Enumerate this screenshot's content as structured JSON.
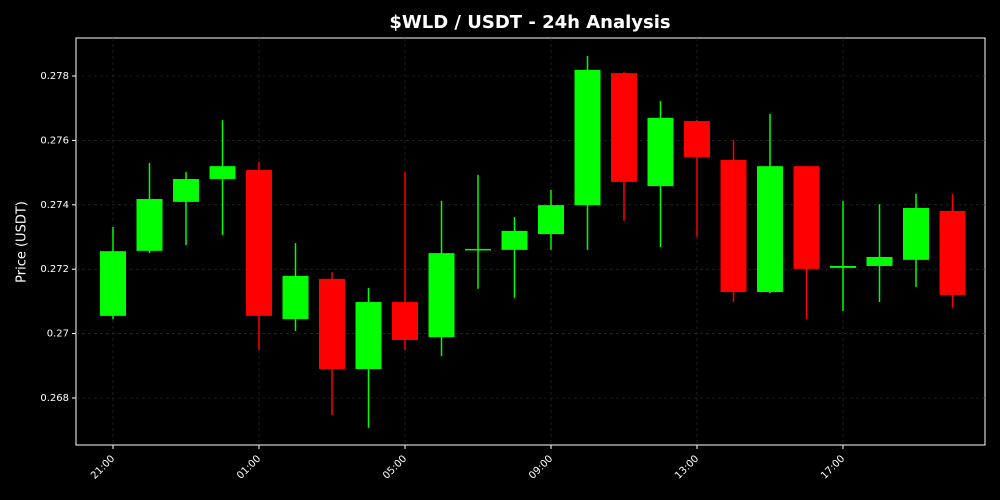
{
  "chart_data": {
    "type": "candlestick",
    "title": "$WLD / USDT - 24h Analysis",
    "y_label": "Price (USDT)",
    "categories": [
      "21:00",
      null,
      null,
      null,
      "01:00",
      null,
      null,
      null,
      "05:00",
      null,
      null,
      null,
      "09:00",
      null,
      null,
      null,
      "13:00",
      null,
      null,
      null,
      "17:00",
      null,
      null,
      null
    ],
    "open": [
      0.27055,
      0.27257,
      0.27409,
      0.2748,
      0.27508,
      0.27045,
      0.2717,
      0.2689,
      0.27098,
      0.26989,
      0.27261,
      0.2726,
      0.27309,
      0.27399,
      0.27809,
      0.27458,
      0.2766,
      0.27539,
      0.27129,
      0.2752,
      0.27204,
      0.2721,
      0.27229,
      0.27381
    ],
    "high": [
      0.27331,
      0.2753,
      0.27502,
      0.27663,
      0.27533,
      0.27281,
      0.27191,
      0.27142,
      0.27502,
      0.27412,
      0.27493,
      0.27362,
      0.27446,
      0.27862,
      0.27812,
      0.27722,
      0.27663,
      0.27601,
      0.27682,
      0.2752,
      0.27412,
      0.27402,
      0.27434,
      0.27434
    ],
    "low": [
      0.27045,
      0.2725,
      0.27275,
      0.27306,
      0.26949,
      0.27008,
      0.26747,
      0.26707,
      0.26949,
      0.2693,
      0.27139,
      0.27111,
      0.2726,
      0.2726,
      0.2735,
      0.27269,
      0.273,
      0.27098,
      0.27125,
      0.27045,
      0.2707,
      0.27098,
      0.27145,
      0.2708
    ],
    "close": [
      0.27256,
      0.27418,
      0.2748,
      0.2752,
      0.27055,
      0.27179,
      0.2689,
      0.27098,
      0.2698,
      0.2725,
      0.27263,
      0.27319,
      0.27399,
      0.27819,
      0.27471,
      0.2767,
      0.27548,
      0.27129,
      0.2752,
      0.27201,
      0.2721,
      0.27238,
      0.2739,
      0.2712
    ],
    "up_color": "#00ff00",
    "down_color": "#ff0000",
    "ylim": [
      0.26654,
      0.27918
    ],
    "yticks": [
      0.268,
      0.27,
      0.272,
      0.274,
      0.276,
      0.278
    ],
    "grid": true
  }
}
